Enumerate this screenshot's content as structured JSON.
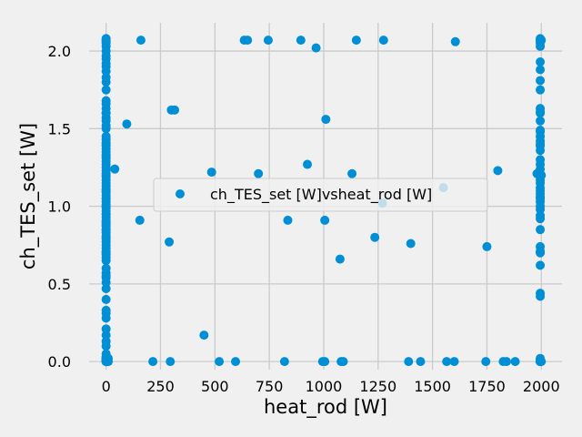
{
  "chart_data": {
    "type": "scatter",
    "title": "",
    "xlabel": "heat_rod [W]",
    "ylabel": "ch_TES_set [W]",
    "xlim": [
      -78,
      2095
    ],
    "ylim": [
      -0.052,
      2.182
    ],
    "xticks": [
      0,
      250,
      500,
      750,
      1000,
      1250,
      1500,
      1750,
      2000
    ],
    "yticks": [
      0.0,
      0.5,
      1.0,
      1.5,
      2.0
    ],
    "xtick_labels": [
      "0",
      "250",
      "500",
      "750",
      "1000",
      "1250",
      "1500",
      "1750",
      "2000"
    ],
    "ytick_labels": [
      "0.0",
      "0.5",
      "1.0",
      "1.5",
      "2.0"
    ],
    "grid": true,
    "legend_position": "center",
    "background": "#f0f0f0",
    "series": [
      {
        "name": "ch_TES_set [W]vsheat_rod [W]",
        "color": "#008fd5",
        "x": [
          0,
          0,
          0,
          0,
          0,
          0,
          0,
          0,
          0,
          0,
          0,
          0,
          0,
          0,
          0,
          0,
          0,
          0,
          0,
          0,
          0,
          0,
          0,
          0,
          0,
          0,
          0,
          0,
          0,
          0,
          0,
          0,
          0,
          0,
          0,
          0,
          0,
          0,
          0,
          0,
          0,
          0,
          0,
          0,
          0,
          0,
          0,
          0,
          0,
          0,
          0,
          0,
          0,
          0,
          0,
          0,
          0,
          0,
          0,
          0,
          0,
          0,
          0,
          0,
          0,
          0,
          0,
          0,
          0,
          0,
          0,
          0,
          0,
          0,
          0,
          0,
          0,
          0,
          0,
          0,
          0,
          0,
          0,
          0,
          0,
          0,
          0,
          0,
          0,
          0,
          0,
          0,
          0,
          0,
          0,
          0,
          0,
          0,
          0,
          0,
          0,
          0,
          0,
          0,
          0,
          5,
          5,
          10,
          10,
          5,
          5,
          40,
          95,
          155,
          160,
          215,
          290,
          295,
          300,
          315,
          450,
          485,
          520,
          595,
          635,
          650,
          700,
          745,
          820,
          835,
          895,
          925,
          965,
          995,
          1005,
          1005,
          1010,
          1075,
          1080,
          1090,
          1130,
          1150,
          1235,
          1270,
          1275,
          1390,
          1400,
          1445,
          1550,
          1565,
          1600,
          1605,
          1745,
          1750,
          1800,
          1825,
          1840,
          1880,
          1980,
          1990,
          1995,
          1995,
          1995,
          1995,
          1995,
          1995,
          1995,
          1995,
          1995,
          1995,
          1995,
          1995,
          1995,
          1995,
          1995,
          1995,
          1995,
          1995,
          1995,
          1995,
          1995,
          1995,
          1995,
          1995,
          1995,
          1995,
          1995,
          1995,
          1995,
          1995,
          1995,
          1995,
          1995,
          1995,
          1995,
          1995,
          1995,
          1995,
          1995,
          1995,
          1995,
          1995,
          1995,
          1995,
          1995,
          1995,
          1995,
          1995,
          1995,
          1995,
          2000,
          2000,
          2000
        ],
        "y": [
          2.08,
          2.07,
          2.06,
          2.05,
          2.03,
          2.0,
          1.97,
          1.95,
          1.92,
          1.9,
          1.87,
          1.83,
          1.8,
          1.75,
          1.68,
          1.66,
          1.63,
          1.6,
          1.57,
          1.55,
          1.52,
          1.5,
          1.45,
          1.43,
          1.41,
          1.39,
          1.37,
          1.35,
          1.33,
          1.31,
          1.29,
          1.27,
          1.25,
          1.23,
          1.21,
          1.19,
          1.17,
          1.15,
          1.13,
          1.11,
          1.09,
          1.07,
          1.05,
          1.03,
          1.01,
          0.99,
          0.97,
          0.95,
          0.93,
          0.91,
          0.89,
          0.87,
          0.85,
          0.83,
          0.81,
          0.79,
          0.77,
          0.75,
          0.73,
          0.71,
          0.69,
          0.67,
          0.6,
          0.57,
          0.54,
          0.51,
          0.47,
          0.33,
          0.31,
          0.28,
          0.21,
          0.17,
          0.13,
          0.1,
          0.03,
          0.02,
          0.01,
          0.0,
          0.0,
          0.0,
          0.02,
          0.01,
          0.0,
          1.4,
          1.0,
          0.9,
          0.8,
          0.7,
          1.6,
          1.2,
          1.1,
          0.85,
          0.95,
          0.05,
          0.03,
          0.0,
          0.01,
          0.02,
          0.0,
          1.05,
          0.65,
          0.55,
          1.32,
          0.88,
          0.4,
          0.01,
          0.0,
          0.02,
          0.0,
          0.01,
          0.0,
          1.24,
          1.53,
          0.91,
          2.07,
          0.0,
          0.77,
          0.0,
          1.62,
          1.62,
          0.17,
          1.22,
          0.0,
          0.0,
          2.07,
          2.07,
          1.21,
          2.07,
          0.0,
          0.91,
          2.07,
          1.27,
          2.02,
          0.0,
          0.0,
          0.91,
          1.56,
          0.66,
          0.0,
          0.0,
          1.21,
          2.07,
          0.8,
          1.02,
          2.07,
          0.0,
          0.76,
          0.0,
          1.12,
          0.0,
          0.0,
          2.06,
          0.0,
          0.74,
          1.23,
          0.0,
          0.0,
          0.0,
          1.21,
          1.22,
          2.08,
          2.07,
          2.06,
          2.05,
          2.03,
          1.93,
          1.88,
          1.81,
          1.63,
          1.61,
          1.49,
          1.48,
          1.42,
          1.39,
          1.36,
          1.27,
          1.24,
          1.21,
          1.17,
          1.12,
          1.08,
          1.06,
          1.03,
          1.0,
          0.94,
          0.92,
          0.74,
          0.71,
          0.62,
          0.44,
          0.42,
          0.0,
          0.0,
          0.0,
          0.0,
          1.55,
          1.45,
          1.3,
          1.15,
          1.1,
          1.05,
          0.98,
          0.85,
          0.7,
          1.75,
          1.6,
          1.4,
          0.01,
          0.02,
          0.0,
          2.07,
          1.2,
          0.0
        ]
      }
    ]
  }
}
